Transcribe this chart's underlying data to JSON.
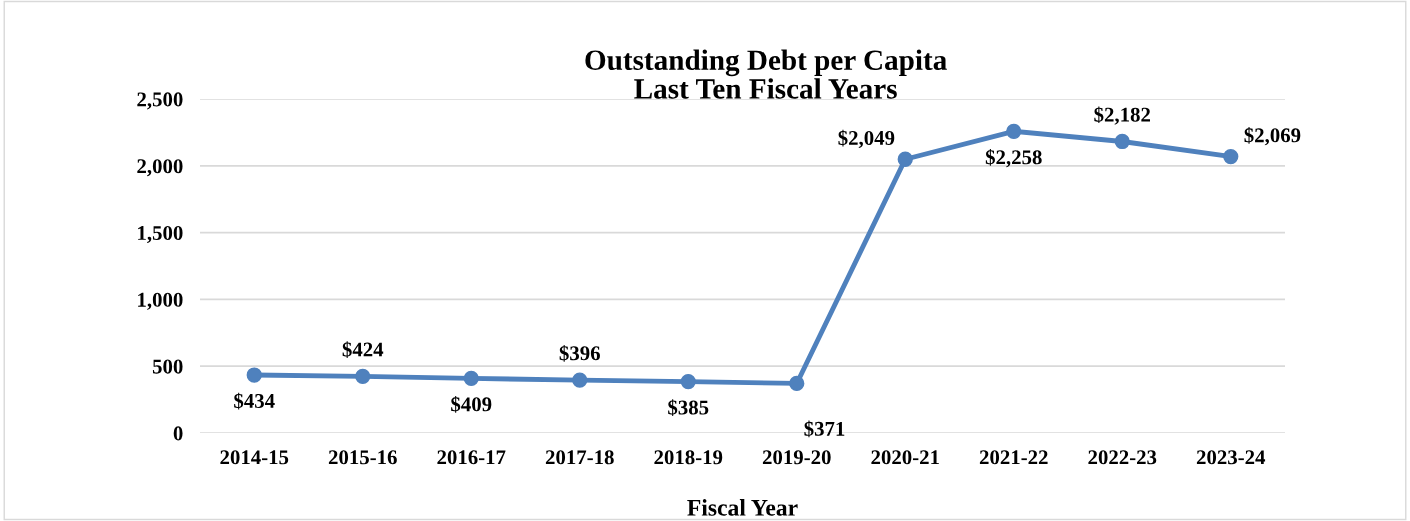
{
  "chart_data": {
    "type": "line",
    "title": "Outstanding Debt per Capita\nLast Ten Fiscal Years",
    "xlabel": "Fiscal Year",
    "categories": [
      "2014-15",
      "2015-16",
      "2016-17",
      "2017-18",
      "2018-19",
      "2019-20",
      "2020-21",
      "2021-22",
      "2022-23",
      "2023-24"
    ],
    "series": [
      {
        "color": "#4f81bd",
        "values": [
          434,
          424,
          409,
          396,
          385,
          371,
          2049,
          2258,
          2182,
          2069
        ],
        "value_labels": [
          "$434",
          "$424",
          "$409",
          "$396",
          "$385",
          "$371",
          "$2,049",
          "$2,258",
          "$2,182",
          "$2,069"
        ]
      }
    ],
    "ylim": [
      0,
      2500
    ],
    "yticks": [
      0,
      {
        "value": 500,
        "label": "500"
      },
      {
        "value": 1000,
        "label": "1,000"
      },
      {
        "value": 1500,
        "label": "1,500"
      },
      {
        "value": 2000,
        "label": "2,000"
      },
      {
        "value": 2500,
        "label": "2,500"
      }
    ],
    "grid": "y",
    "marker": "circle",
    "line_style": "solid",
    "legend": false
  }
}
